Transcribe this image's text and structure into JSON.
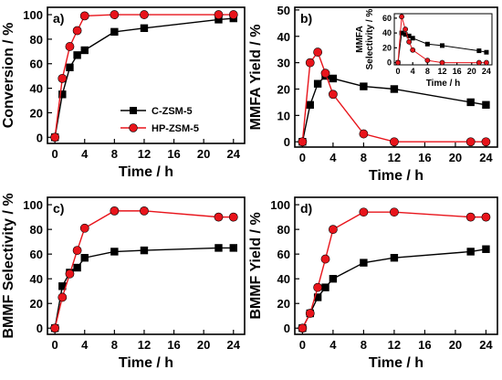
{
  "colors": {
    "c_zsm5": "#000000",
    "hp_zsm5": "#e8141b"
  },
  "chart_data": [
    {
      "type": "line",
      "panel_label": "a)",
      "xlabel": "Time / h",
      "ylabel": "Conversion / %",
      "xlim": [
        -1,
        25.5
      ],
      "ylim": [
        -5,
        106
      ],
      "xticks": [
        0,
        4,
        8,
        12,
        16,
        20,
        24
      ],
      "yticks": [
        0,
        20,
        40,
        60,
        80,
        100
      ],
      "legend": {
        "position": "center-right",
        "entries": [
          "C-ZSM-5",
          "HP-ZSM-5"
        ]
      },
      "series": [
        {
          "name": "C-ZSM-5",
          "marker": "square",
          "x": [
            0,
            1,
            2,
            3,
            4,
            8,
            12,
            22,
            24
          ],
          "y": [
            0,
            35,
            57,
            67,
            71,
            86,
            89,
            96,
            97
          ]
        },
        {
          "name": "HP-ZSM-5",
          "marker": "circle",
          "x": [
            0,
            1,
            2,
            3,
            4,
            8,
            12,
            22,
            24
          ],
          "y": [
            0,
            48,
            74,
            87,
            99,
            100,
            100,
            100,
            100
          ]
        }
      ]
    },
    {
      "type": "line",
      "panel_label": "b)",
      "xlabel": "Time / h",
      "ylabel": "MMFA Yield / %",
      "xlim": [
        -1,
        25.5
      ],
      "ylim": [
        -2,
        51
      ],
      "xticks": [
        0,
        4,
        8,
        12,
        16,
        20,
        24
      ],
      "yticks": [
        0,
        10,
        20,
        30,
        40,
        50
      ],
      "series": [
        {
          "name": "C-ZSM-5",
          "marker": "square",
          "x": [
            0,
            1,
            2,
            3,
            4,
            8,
            12,
            22,
            24
          ],
          "y": [
            0,
            14,
            22,
            25,
            24,
            21,
            20,
            15,
            14
          ]
        },
        {
          "name": "HP-ZSM-5",
          "marker": "circle",
          "x": [
            0,
            1,
            2,
            3,
            4,
            8,
            12,
            22,
            24
          ],
          "y": [
            0,
            30,
            34,
            26,
            18,
            3,
            0,
            0,
            0
          ]
        }
      ],
      "inset": {
        "xlabel": "Time / h",
        "ylabel_lines": [
          "MMFA",
          "Selectivity / %"
        ],
        "xlim": [
          -1,
          25.5
        ],
        "ylim": [
          -3,
          66
        ],
        "xticks": [
          0,
          4,
          8,
          12,
          16,
          20,
          24
        ],
        "yticks": [
          0,
          20,
          40,
          60
        ],
        "series": [
          {
            "name": "C-ZSM-5",
            "marker": "square",
            "x": [
              0,
              1,
              2,
              3,
              4,
              8,
              12,
              22,
              24
            ],
            "y": [
              0,
              40,
              38,
              36,
              33,
              25,
              23,
              16,
              14
            ]
          },
          {
            "name": "HP-ZSM-5",
            "marker": "circle",
            "x": [
              0,
              1,
              2,
              3,
              4,
              8,
              12,
              22,
              24
            ],
            "y": [
              0,
              62,
              45,
              28,
              17,
              3,
              0,
              0,
              0
            ]
          }
        ]
      }
    },
    {
      "type": "line",
      "panel_label": "c)",
      "xlabel": "Time / h",
      "ylabel": "BMMF Selectivity / %",
      "xlim": [
        -1,
        25.5
      ],
      "ylim": [
        -5,
        106
      ],
      "xticks": [
        0,
        4,
        8,
        12,
        16,
        20,
        24
      ],
      "yticks": [
        0,
        20,
        40,
        60,
        80,
        100
      ],
      "series": [
        {
          "name": "C-ZSM-5",
          "marker": "square",
          "x": [
            0,
            1,
            2,
            3,
            4,
            8,
            12,
            22,
            24
          ],
          "y": [
            0,
            34,
            45,
            49,
            57,
            62,
            63,
            65,
            65
          ]
        },
        {
          "name": "HP-ZSM-5",
          "marker": "circle",
          "x": [
            0,
            1,
            2,
            3,
            4,
            8,
            12,
            22,
            24
          ],
          "y": [
            0,
            25,
            44,
            63,
            81,
            95,
            95,
            90,
            90
          ]
        }
      ]
    },
    {
      "type": "line",
      "panel_label": "d)",
      "xlabel": "Time / h",
      "ylabel": "BMMF Yield / %",
      "xlim": [
        -1,
        25.5
      ],
      "ylim": [
        -5,
        106
      ],
      "xticks": [
        0,
        4,
        8,
        12,
        16,
        20,
        24
      ],
      "yticks": [
        0,
        20,
        40,
        60,
        80,
        100
      ],
      "series": [
        {
          "name": "C-ZSM-5",
          "marker": "square",
          "x": [
            0,
            1,
            2,
            3,
            4,
            8,
            12,
            22,
            24
          ],
          "y": [
            0,
            12,
            25,
            33,
            40,
            53,
            57,
            62,
            64
          ]
        },
        {
          "name": "HP-ZSM-5",
          "marker": "circle",
          "x": [
            0,
            1,
            2,
            3,
            4,
            8,
            12,
            22,
            24
          ],
          "y": [
            0,
            12,
            33,
            56,
            80,
            94,
            94,
            90,
            90
          ]
        }
      ]
    }
  ]
}
